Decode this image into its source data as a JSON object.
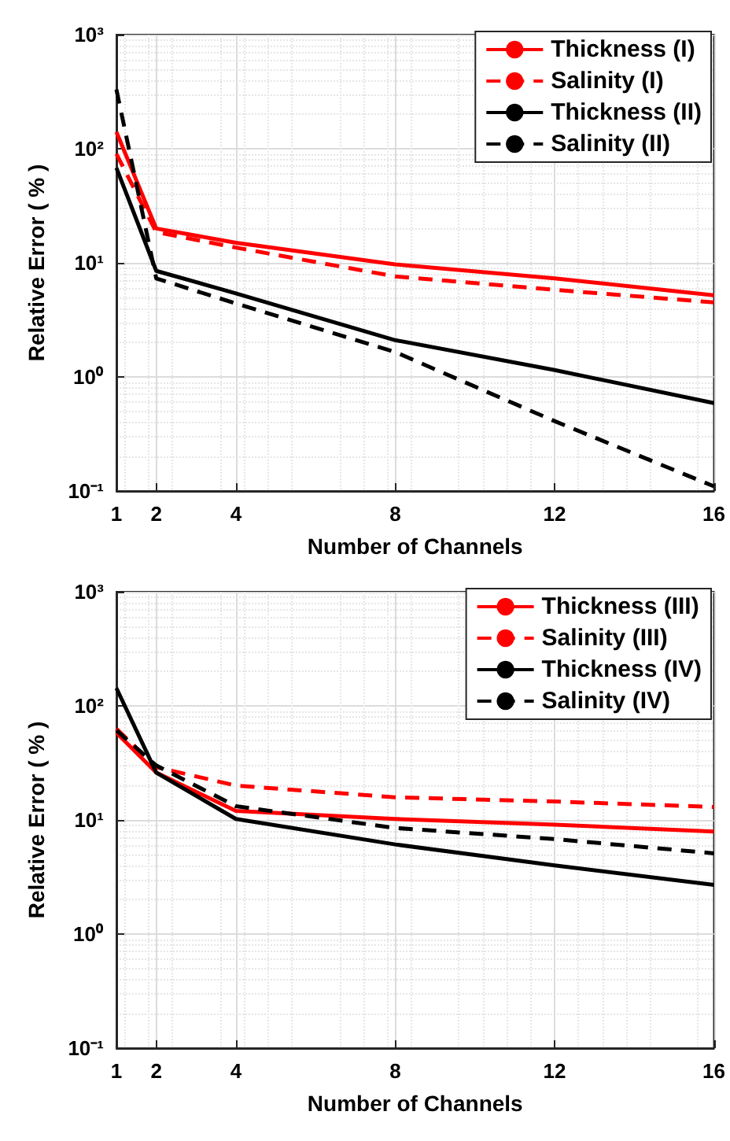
{
  "chart_data": [
    {
      "type": "line",
      "xlabel": "Number of Channels",
      "ylabel": "Relative Error ( % )",
      "log": "y",
      "grid": true,
      "legend": "top right",
      "marker": "none",
      "x": [
        1,
        2,
        4,
        8,
        12,
        16
      ],
      "xlim": [
        1,
        16
      ],
      "xticks": [
        1,
        2,
        4,
        8,
        12,
        16
      ],
      "ylim": [
        0.1,
        1000
      ],
      "yticks": [
        {
          "value": 0.1,
          "label": "10⁻¹"
        },
        {
          "value": 1,
          "label": "10⁰"
        },
        {
          "value": 10,
          "label": "10¹"
        },
        {
          "value": 100,
          "label": "10²"
        },
        {
          "value": 1000,
          "label": "10³"
        }
      ],
      "series": [
        {
          "name": "Thickness (I)",
          "color": "#ff0000",
          "line_style": "solid",
          "values": [
            140,
            20,
            15,
            9.7,
            7.3,
            5.2
          ]
        },
        {
          "name": "Salinity (I)",
          "color": "#ff0000",
          "line_style": "dashed",
          "values": [
            90,
            18.6,
            13.6,
            7.6,
            5.8,
            4.5
          ]
        },
        {
          "name": "Thickness (II)",
          "color": "#000000",
          "line_style": "solid",
          "values": [
            68,
            8.5,
            5.4,
            2.1,
            1.15,
            0.59
          ]
        },
        {
          "name": "Salinity (II)",
          "color": "#000000",
          "line_style": "dashed",
          "values": [
            330,
            7.3,
            4.4,
            1.65,
            0.41,
            0.11
          ]
        }
      ]
    },
    {
      "type": "line",
      "xlabel": "Number of Channels",
      "ylabel": "Relative Error ( % )",
      "log": "y",
      "grid": true,
      "legend": "top right",
      "marker": "none",
      "x": [
        1,
        2,
        4,
        8,
        12,
        16
      ],
      "xlim": [
        1,
        16
      ],
      "xticks": [
        1,
        2,
        4,
        8,
        12,
        16
      ],
      "ylim": [
        0.1,
        1000
      ],
      "yticks": [
        {
          "value": 0.1,
          "label": "10⁻¹"
        },
        {
          "value": 1,
          "label": "10⁰"
        },
        {
          "value": 10,
          "label": "10¹"
        },
        {
          "value": 100,
          "label": "10²"
        },
        {
          "value": 1000,
          "label": "10³"
        }
      ],
      "series": [
        {
          "name": "Thickness (III)",
          "color": "#ff0000",
          "line_style": "solid",
          "values": [
            58,
            26,
            12,
            10.2,
            9.1,
            7.9
          ]
        },
        {
          "name": "Salinity (III)",
          "color": "#ff0000",
          "line_style": "dashed",
          "values": [
            63,
            29,
            20,
            15.8,
            14.5,
            13
          ]
        },
        {
          "name": "Thickness (IV)",
          "color": "#000000",
          "line_style": "solid",
          "values": [
            143,
            26,
            10.2,
            6.1,
            4.0,
            2.7
          ]
        },
        {
          "name": "Salinity (IV)",
          "color": "#000000",
          "line_style": "dashed",
          "values": [
            61,
            30,
            13.2,
            8.5,
            6.8,
            5.1
          ]
        }
      ]
    }
  ]
}
